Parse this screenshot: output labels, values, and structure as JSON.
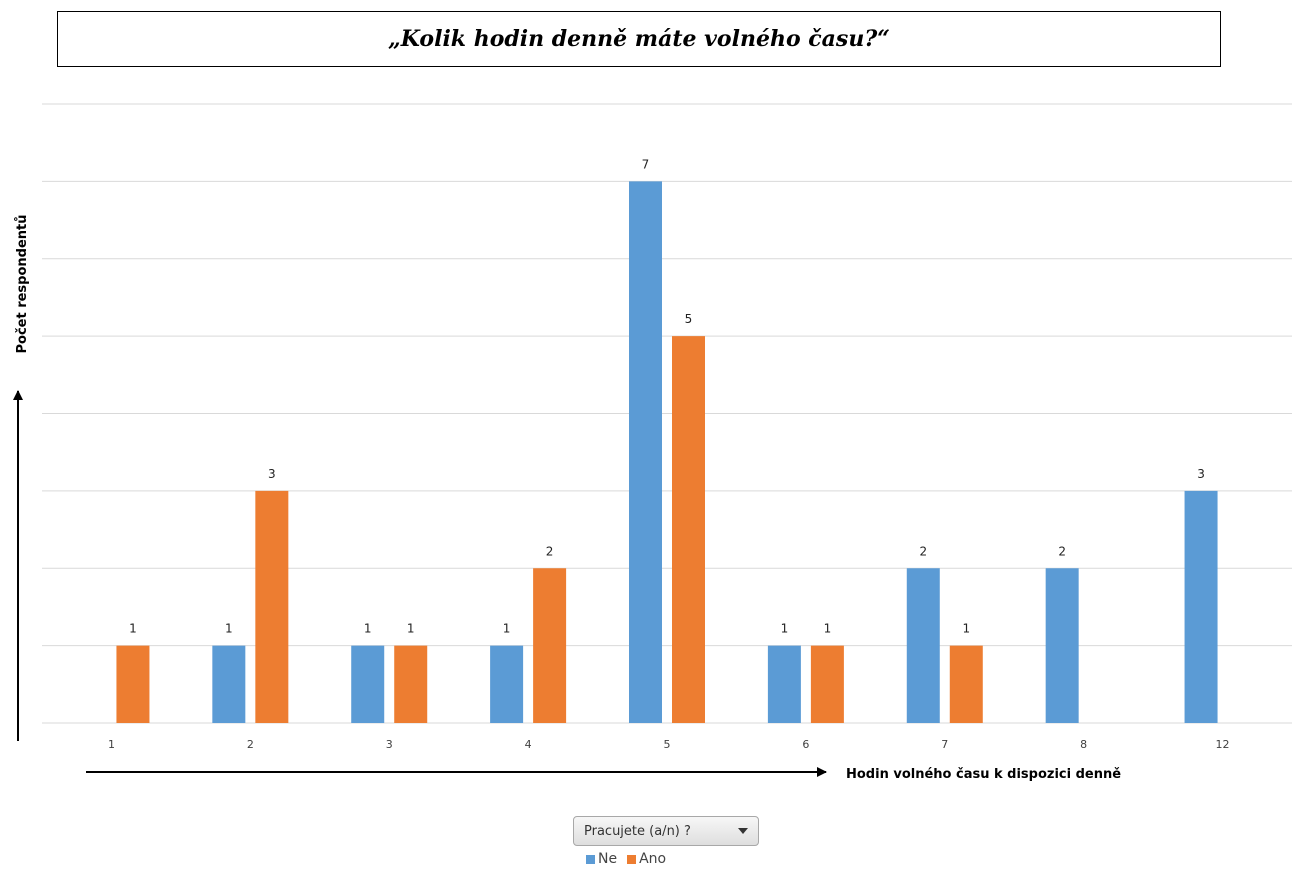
{
  "title": "„Kolik hodin denně máte volného času?“",
  "colors": {
    "ne": "#5b9bd5",
    "ano": "#ed7d31",
    "grid": "#d9d9d9",
    "axis": "#000000"
  },
  "filter": {
    "label": "Pracujete (a/n) ?",
    "icon": "dropdown-caret-icon"
  },
  "chart_data": {
    "type": "bar",
    "categories": [
      "1",
      "2",
      "3",
      "4",
      "5",
      "6",
      "7",
      "8",
      "12"
    ],
    "series": [
      {
        "name": "Ne",
        "values": [
          null,
          1,
          1,
          1,
          7,
          1,
          2,
          2,
          3
        ]
      },
      {
        "name": "Ano",
        "values": [
          1,
          3,
          1,
          2,
          5,
          1,
          1,
          null,
          null
        ]
      }
    ],
    "xlabel": "Hodin volného času k dispozici denně",
    "ylabel": "Počet respondentů",
    "ylim": [
      0,
      8
    ],
    "grid": true,
    "data_labels": true,
    "legend_position": "bottom"
  }
}
